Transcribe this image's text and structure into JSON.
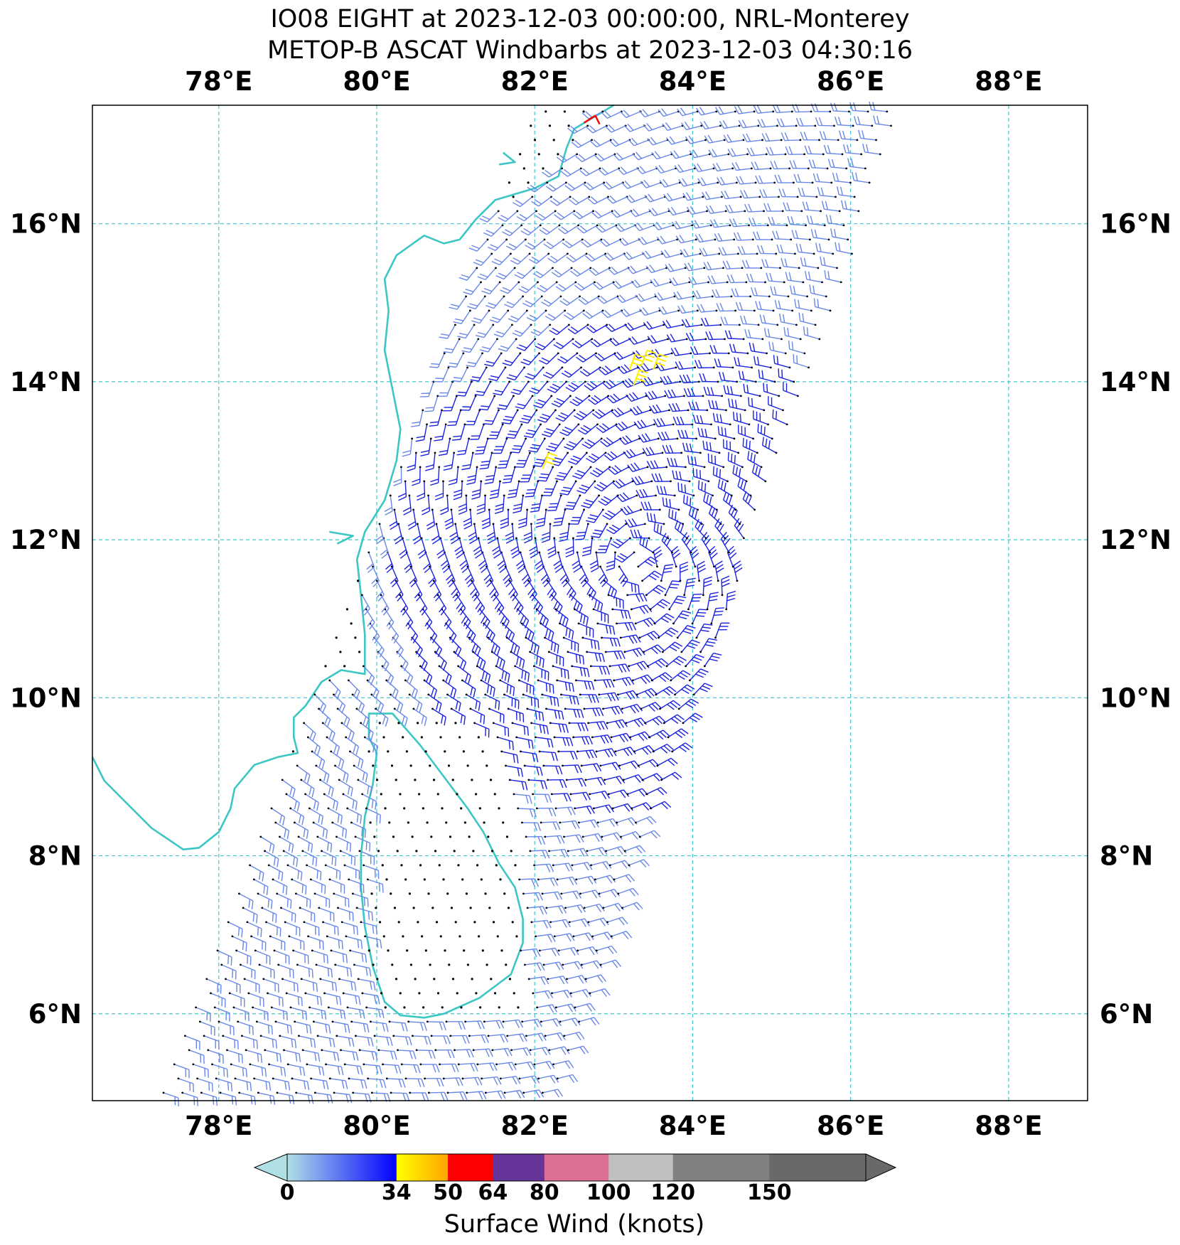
{
  "title": {
    "line1": "IO08 EIGHT at 2023-12-03 00:00:00, NRL-Monterey",
    "line2": "METOP-B ASCAT Windbarbs at 2023-12-03 04:30:16"
  },
  "map": {
    "lon_labels": [
      "78°E",
      "80°E",
      "82°E",
      "84°E",
      "86°E",
      "88°E"
    ],
    "lat_labels": [
      "16°N",
      "14°N",
      "12°N",
      "10°N",
      "8°N",
      "6°N"
    ],
    "gridline_color": "#40c4cc",
    "coastline_color": "#3cc6c4"
  },
  "colorbar": {
    "label": "Surface Wind (knots)",
    "ticks": [
      "0",
      "34",
      "50",
      "64",
      "80",
      "100",
      "120",
      "150"
    ],
    "segments": [
      {
        "from": 0,
        "to": 34,
        "colors": [
          "#b0e0e6",
          "#0000ff"
        ]
      },
      {
        "from": 34,
        "to": 50,
        "colors": [
          "#ffff00",
          "#ffa500"
        ]
      },
      {
        "from": 50,
        "to": 64,
        "colors": [
          "#ff0000",
          "#ff0000"
        ]
      },
      {
        "from": 64,
        "to": 80,
        "colors": [
          "#663399",
          "#663399"
        ]
      },
      {
        "from": 80,
        "to": 100,
        "colors": [
          "#db7093",
          "#db7093"
        ]
      },
      {
        "from": 100,
        "to": 120,
        "colors": [
          "#c0c0c0",
          "#c0c0c0"
        ]
      },
      {
        "from": 120,
        "to": 150,
        "colors": [
          "#808080",
          "#808080"
        ]
      },
      {
        "from": 150,
        "to": 180,
        "colors": [
          "#696969",
          "#696969"
        ]
      }
    ],
    "extend_low_color": "#b0e0e6",
    "extend_high_color": "#696969"
  },
  "legend_colors": {
    "calm_dot": "#000000",
    "light": "#6a88e8",
    "moderate": "#1a22e0",
    "gale": "#ffee00",
    "storm": "#ff0000"
  }
}
